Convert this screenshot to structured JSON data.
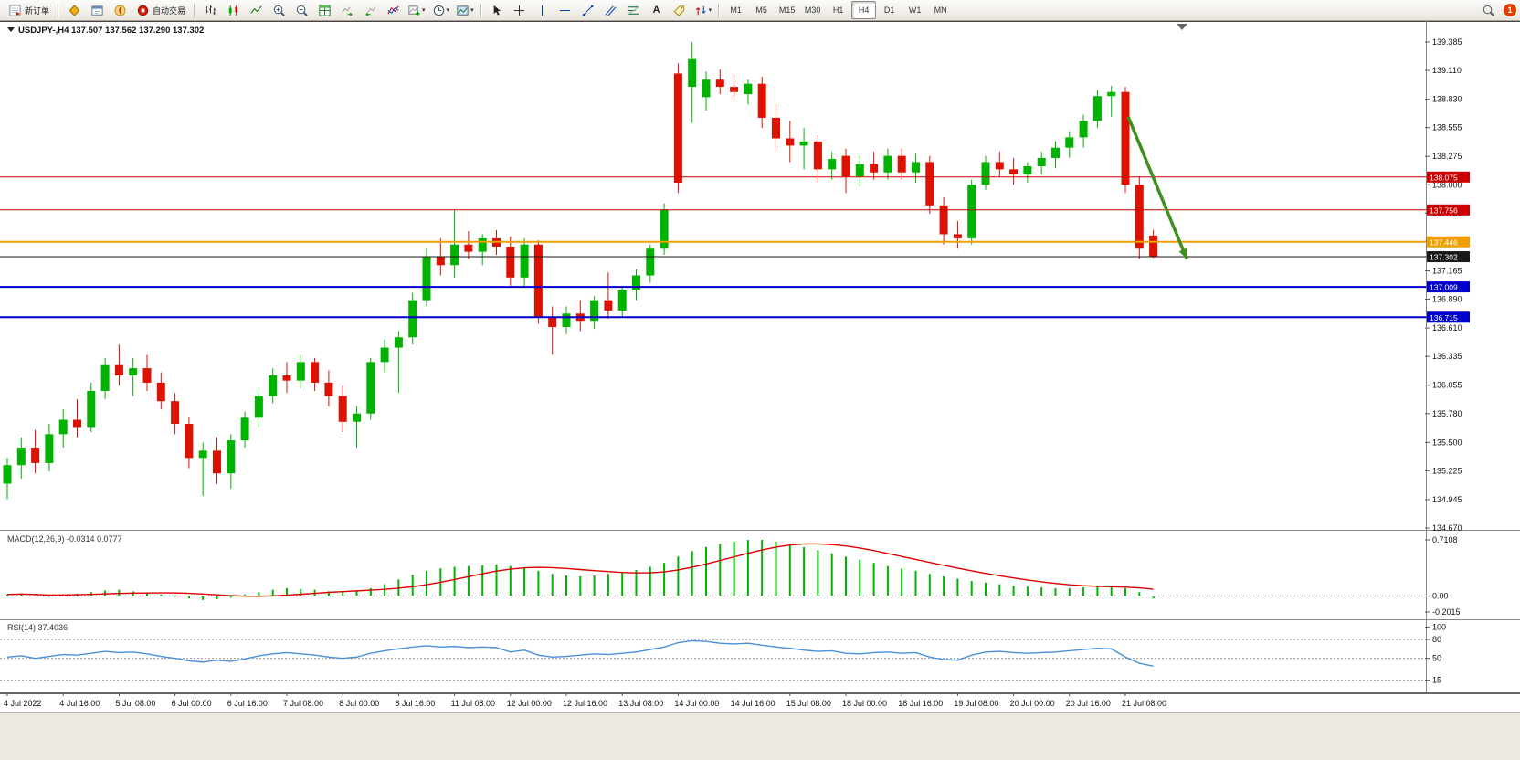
{
  "toolbar": {
    "new_order_label": "新订单",
    "auto_trading_label": "自动交易",
    "timeframes": [
      "M1",
      "M5",
      "M15",
      "M30",
      "H1",
      "H4",
      "D1",
      "W1",
      "MN"
    ],
    "active_timeframe": "H4",
    "notification_count": "1",
    "icon_names": [
      "new-order-icon",
      "gold-diamond-icon",
      "data-window-icon",
      "navigator-icon",
      "auto-trading-icon",
      "bar-chart-icon",
      "candlestick-icon",
      "line-chart-icon",
      "zoom-in-icon",
      "zoom-out-icon",
      "tile-windows-icon",
      "auto-scroll-icon",
      "chart-shift-icon",
      "indicators-icon",
      "new-chart-icon",
      "periods-icon",
      "templates-icon",
      "cursor-icon",
      "crosshair-icon",
      "vertical-line-icon",
      "horizontal-line-icon",
      "trendline-icon",
      "channel-icon",
      "fibonacci-icon",
      "text-icon",
      "label-icon",
      "arrows-icon",
      "search-icon"
    ]
  },
  "chart": {
    "symbol_title": "USDJPY-,H4 137.507 137.562 137.290 137.302",
    "ohlc": {
      "open": "137.507",
      "high": "137.562",
      "low": "137.290",
      "close": "137.302"
    },
    "price_axis_ticks": [
      "139.385",
      "139.110",
      "138.830",
      "138.555",
      "138.275",
      "138.000",
      "137.725",
      "137.450",
      "137.165",
      "136.890",
      "136.610",
      "136.335",
      "136.055",
      "135.780",
      "135.500",
      "135.225",
      "134.945",
      "134.670"
    ],
    "hlines": [
      {
        "price": 138.075,
        "label": "138.075",
        "color": "#cc0000",
        "width": 1
      },
      {
        "price": 137.756,
        "label": "137.756",
        "color": "#cc0000",
        "width": 1
      },
      {
        "price": 137.446,
        "label": "137.446",
        "color": "#efA000",
        "width": 2
      },
      {
        "price": 137.302,
        "label": "137.302",
        "color": "#1a1a1a",
        "width": 1
      },
      {
        "price": 137.009,
        "label": "137.009",
        "color": "#0000cc",
        "width": 2
      },
      {
        "price": 136.715,
        "label": "136.715",
        "color": "#0000cc",
        "width": 2
      }
    ],
    "current_price": "137.302",
    "colors": {
      "up": "#00b300",
      "down": "#dd1100",
      "macd_bar": "#00b300",
      "macd_signal": "#dd0000",
      "rsi": "#4a90d9",
      "axis_line": "#888888",
      "level_dash": "#999999"
    },
    "annotations": [
      {
        "type": "arrow",
        "from_candle": 80.2,
        "from_price": 138.66,
        "to_candle": 84.4,
        "to_price": 137.28,
        "color": "#3f8f1f"
      }
    ]
  },
  "chart_data": [
    {
      "type": "candlestick",
      "name": "USDJPY H4",
      "ylim": [
        134.67,
        139.385
      ],
      "candles": [
        [
          135.1,
          135.35,
          134.95,
          135.28
        ],
        [
          135.28,
          135.55,
          135.15,
          135.45
        ],
        [
          135.45,
          135.62,
          135.2,
          135.3
        ],
        [
          135.3,
          135.68,
          135.22,
          135.58
        ],
        [
          135.58,
          135.82,
          135.45,
          135.72
        ],
        [
          135.72,
          135.92,
          135.55,
          135.65
        ],
        [
          135.65,
          136.08,
          135.6,
          136.0
        ],
        [
          136.0,
          136.32,
          135.92,
          136.25
        ],
        [
          136.25,
          136.45,
          136.05,
          136.15
        ],
        [
          136.15,
          136.32,
          135.95,
          136.22
        ],
        [
          136.22,
          136.35,
          136.0,
          136.08
        ],
        [
          136.08,
          136.18,
          135.82,
          135.9
        ],
        [
          135.9,
          135.98,
          135.58,
          135.68
        ],
        [
          135.68,
          135.75,
          135.25,
          135.35
        ],
        [
          135.35,
          135.5,
          134.98,
          135.42
        ],
        [
          135.42,
          135.55,
          135.1,
          135.2
        ],
        [
          135.2,
          135.58,
          135.05,
          135.52
        ],
        [
          135.52,
          135.8,
          135.45,
          135.74
        ],
        [
          135.74,
          136.02,
          135.65,
          135.95
        ],
        [
          135.95,
          136.22,
          135.88,
          136.15
        ],
        [
          136.15,
          136.28,
          135.98,
          136.1
        ],
        [
          136.1,
          136.35,
          136.02,
          136.28
        ],
        [
          136.28,
          136.32,
          136.0,
          136.08
        ],
        [
          136.08,
          136.2,
          135.85,
          135.95
        ],
        [
          135.95,
          136.05,
          135.6,
          135.7
        ],
        [
          135.7,
          135.85,
          135.45,
          135.78
        ],
        [
          135.78,
          136.32,
          135.72,
          136.28
        ],
        [
          136.28,
          136.5,
          136.18,
          136.42
        ],
        [
          136.42,
          136.58,
          135.98,
          136.52
        ],
        [
          136.52,
          136.95,
          136.45,
          136.88
        ],
        [
          136.88,
          137.38,
          136.82,
          137.3
        ],
        [
          137.3,
          137.48,
          137.12,
          137.22
        ],
        [
          137.22,
          137.75,
          137.1,
          137.42
        ],
        [
          137.42,
          137.55,
          137.28,
          137.35
        ],
        [
          137.35,
          137.52,
          137.22,
          137.48
        ],
        [
          137.48,
          137.56,
          137.32,
          137.4
        ],
        [
          137.4,
          137.5,
          137.02,
          137.1
        ],
        [
          137.1,
          137.48,
          137.0,
          137.42
        ],
        [
          137.42,
          137.46,
          136.65,
          136.72
        ],
        [
          136.72,
          136.82,
          136.35,
          136.62
        ],
        [
          136.62,
          136.82,
          136.55,
          136.75
        ],
        [
          136.75,
          136.88,
          136.58,
          136.68
        ],
        [
          136.68,
          136.92,
          136.6,
          136.88
        ],
        [
          136.88,
          137.15,
          136.7,
          136.78
        ],
        [
          136.78,
          137.02,
          136.72,
          136.98
        ],
        [
          136.98,
          137.18,
          136.88,
          137.12
        ],
        [
          137.12,
          137.42,
          137.05,
          137.38
        ],
        [
          137.38,
          137.82,
          137.32,
          137.76
        ],
        [
          139.08,
          139.18,
          137.92,
          138.02
        ],
        [
          138.95,
          139.385,
          138.6,
          139.22
        ],
        [
          138.85,
          139.1,
          138.72,
          139.02
        ],
        [
          139.02,
          139.12,
          138.88,
          138.95
        ],
        [
          138.95,
          139.08,
          138.82,
          138.9
        ],
        [
          138.88,
          139.02,
          138.78,
          138.98
        ],
        [
          138.98,
          139.05,
          138.55,
          138.65
        ],
        [
          138.65,
          138.78,
          138.32,
          138.45
        ],
        [
          138.45,
          138.62,
          138.22,
          138.38
        ],
        [
          138.38,
          138.55,
          138.15,
          138.42
        ],
        [
          138.42,
          138.48,
          138.02,
          138.15
        ],
        [
          138.15,
          138.32,
          138.05,
          138.25
        ],
        [
          138.28,
          138.35,
          137.92,
          138.08
        ],
        [
          138.08,
          138.28,
          137.98,
          138.2
        ],
        [
          138.2,
          138.32,
          138.05,
          138.12
        ],
        [
          138.12,
          138.35,
          138.05,
          138.28
        ],
        [
          138.28,
          138.35,
          138.05,
          138.12
        ],
        [
          138.12,
          138.3,
          138.02,
          138.22
        ],
        [
          138.22,
          138.28,
          137.72,
          137.8
        ],
        [
          137.8,
          137.88,
          137.42,
          137.52
        ],
        [
          137.52,
          137.65,
          137.38,
          137.48
        ],
        [
          137.48,
          138.05,
          137.42,
          138.0
        ],
        [
          138.0,
          138.28,
          137.95,
          138.22
        ],
        [
          138.22,
          138.32,
          138.08,
          138.15
        ],
        [
          138.15,
          138.26,
          138.0,
          138.1
        ],
        [
          138.1,
          138.22,
          138.02,
          138.18
        ],
        [
          138.18,
          138.32,
          138.1,
          138.26
        ],
        [
          138.26,
          138.42,
          138.16,
          138.36
        ],
        [
          138.36,
          138.52,
          138.26,
          138.46
        ],
        [
          138.46,
          138.68,
          138.36,
          138.62
        ],
        [
          138.62,
          138.92,
          138.55,
          138.86
        ],
        [
          138.86,
          138.96,
          138.66,
          138.9
        ],
        [
          138.9,
          138.95,
          137.92,
          138.0
        ],
        [
          138.0,
          138.08,
          137.28,
          137.38
        ],
        [
          137.507,
          137.562,
          137.29,
          137.302
        ]
      ]
    },
    {
      "type": "bar",
      "name": "MACD",
      "title": "MACD(12,26,9) -0.0314 0.0777",
      "main_last": -0.0314,
      "signal_last": 0.0777,
      "ylim": [
        -0.2015,
        0.7108
      ],
      "axis_ticks": [
        {
          "label": "0.7108",
          "value": 0.7108
        },
        {
          "label": "0.00",
          "value": 0
        },
        {
          "label": "-0.2015",
          "value": -0.2015
        }
      ],
      "values": [
        0.02,
        0.03,
        0.01,
        -0.01,
        0.02,
        0.03,
        0.05,
        0.07,
        0.08,
        0.06,
        0.04,
        0.02,
        -0.01,
        -0.03,
        -0.05,
        -0.04,
        -0.02,
        0.02,
        0.05,
        0.08,
        0.1,
        0.09,
        0.08,
        0.06,
        0.05,
        0.06,
        0.1,
        0.15,
        0.21,
        0.27,
        0.32,
        0.35,
        0.37,
        0.38,
        0.39,
        0.4,
        0.38,
        0.36,
        0.32,
        0.28,
        0.26,
        0.25,
        0.26,
        0.28,
        0.3,
        0.33,
        0.37,
        0.42,
        0.5,
        0.57,
        0.62,
        0.66,
        0.69,
        0.71,
        0.7108,
        0.69,
        0.66,
        0.62,
        0.58,
        0.54,
        0.5,
        0.46,
        0.42,
        0.38,
        0.35,
        0.32,
        0.28,
        0.25,
        0.22,
        0.19,
        0.17,
        0.15,
        0.13,
        0.12,
        0.11,
        0.1,
        0.1,
        0.11,
        0.12,
        0.12,
        0.1,
        0.05,
        -0.0314
      ]
    },
    {
      "type": "line",
      "name": "RSI",
      "title": "RSI(14) 37.4036",
      "last": 37.4036,
      "ylim": [
        15,
        100
      ],
      "levels": [
        80,
        50,
        15
      ],
      "axis_ticks": [
        {
          "label": "100",
          "value": 100
        },
        {
          "label": "80",
          "value": 80
        },
        {
          "label": "50",
          "value": 50
        },
        {
          "label": "15",
          "value": 15
        }
      ],
      "values": [
        52,
        54,
        50,
        53,
        56,
        55,
        58,
        61,
        59,
        60,
        57,
        53,
        50,
        46,
        44,
        47,
        45,
        49,
        54,
        57,
        59,
        57,
        55,
        52,
        50,
        52,
        58,
        62,
        65,
        68,
        70,
        68,
        69,
        67,
        68,
        67,
        60,
        63,
        55,
        52,
        53,
        55,
        57,
        56,
        58,
        60,
        64,
        68,
        75,
        78,
        77,
        74,
        73,
        74,
        71,
        68,
        66,
        63,
        61,
        62,
        58,
        57,
        59,
        60,
        58,
        59,
        52,
        48,
        47,
        55,
        60,
        61,
        59,
        58,
        59,
        60,
        62,
        64,
        66,
        65,
        52,
        42,
        37.4
      ]
    }
  ],
  "time_axis": {
    "labels": [
      "4 Jul 2022",
      "4 Jul 16:00",
      "5 Jul 08:00",
      "6 Jul 00:00",
      "6 Jul 16:00",
      "7 Jul 08:00",
      "8 Jul 00:00",
      "8 Jul 16:00",
      "11 Jul 08:00",
      "12 Jul 00:00",
      "12 Jul 16:00",
      "13 Jul 08:00",
      "14 Jul 00:00",
      "14 Jul 16:00",
      "15 Jul 08:00",
      "18 Jul 00:00",
      "18 Jul 16:00",
      "19 Jul 08:00",
      "20 Jul 00:00",
      "20 Jul 16:00",
      "21 Jul 08:00"
    ]
  }
}
